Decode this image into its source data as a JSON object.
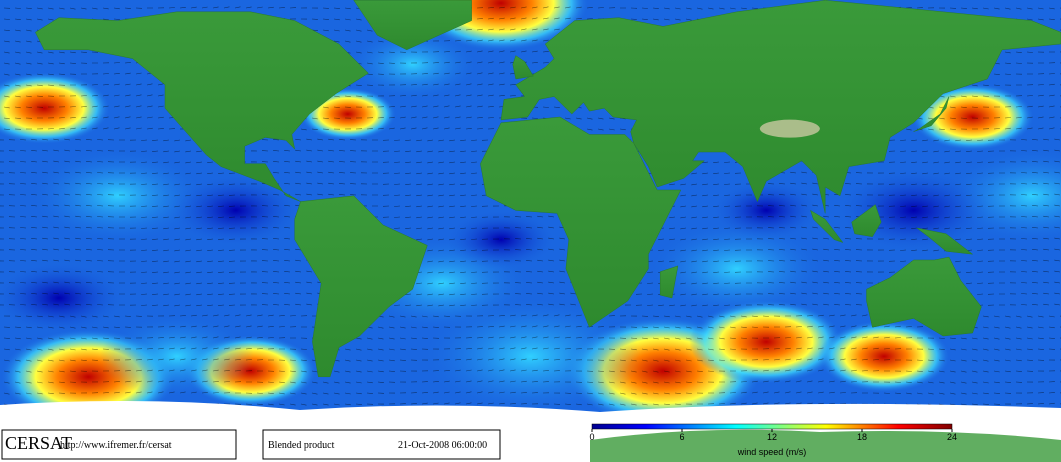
{
  "logo": "CERSAT",
  "url": "http://www.ifremer.fr/cersat",
  "product": "Blended product",
  "timestamp": "21-Oct-2008 06:00:00",
  "colorbar": {
    "label": "wind speed (m/s)",
    "range": [
      0,
      24
    ],
    "ticks": [
      0,
      6,
      12,
      18,
      24
    ]
  }
}
